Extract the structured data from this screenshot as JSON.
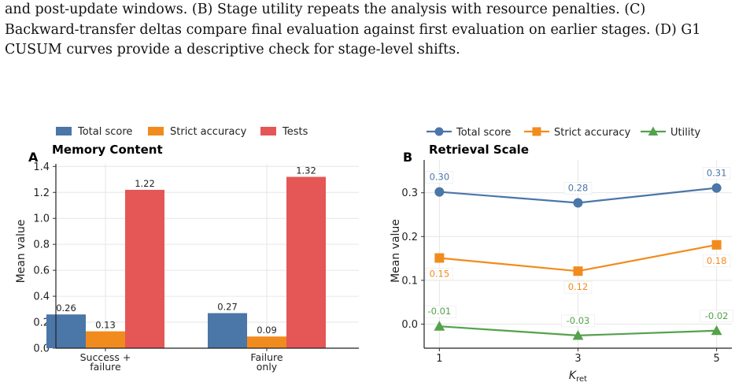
{
  "caption_lines": [
    "and post-update windows. (B) Stage utility repeats the analysis with resource penalties. (C)",
    "Backward-transfer deltas compare final evaluation against first evaluation on earlier stages. (D) G1",
    "CUSUM curves provide a descriptive check for stage-level shifts."
  ],
  "colors": {
    "total": "#4a76a8",
    "strict": "#f28b1e",
    "tests": "#e45756",
    "utility": "#54a24b"
  },
  "chart_data": [
    {
      "type": "bar",
      "panel_letter": "A",
      "title": "Memory Content",
      "ylabel": "Mean value",
      "xlabel": "",
      "categories": [
        "Success +\nfailure",
        "Failure\nonly"
      ],
      "series": [
        {
          "name": "Total score",
          "values": [
            0.26,
            0.27
          ],
          "labels": [
            "0.26",
            "0.27"
          ]
        },
        {
          "name": "Strict accuracy",
          "values": [
            0.13,
            0.09
          ],
          "labels": [
            "0.13",
            "0.09"
          ]
        },
        {
          "name": "Tests",
          "values": [
            1.22,
            1.32
          ],
          "labels": [
            "1.22",
            "1.32"
          ]
        }
      ],
      "ylim": [
        0,
        1.42
      ],
      "yticks": [
        "0.0",
        "0.2",
        "0.4",
        "0.6",
        "0.8",
        "1.0",
        "1.2",
        "1.4"
      ],
      "grid": true,
      "legend": "top"
    },
    {
      "type": "line",
      "panel_letter": "B",
      "title": "Retrieval Scale",
      "ylabel": "Mean value",
      "xlabel": "K_ret",
      "xlabel_main": "K",
      "xlabel_sub": "ret",
      "x": [
        1,
        3,
        5
      ],
      "xticks": [
        "1",
        "3",
        "5"
      ],
      "series": [
        {
          "name": "Total score",
          "marker": "circle",
          "values": [
            0.302,
            0.277,
            0.311
          ],
          "labels": [
            "0.30",
            "0.28",
            "0.31"
          ],
          "label_pos": "above"
        },
        {
          "name": "Strict accuracy",
          "marker": "square",
          "values": [
            0.151,
            0.121,
            0.181
          ],
          "labels": [
            "0.15",
            "0.12",
            "0.18"
          ],
          "label_pos": "below"
        },
        {
          "name": "Utility",
          "marker": "triangle",
          "values": [
            -0.005,
            -0.026,
            -0.015
          ],
          "labels": [
            "-0.01",
            "-0.03",
            "-0.02"
          ],
          "label_pos": "above"
        }
      ],
      "ylim": [
        -0.055,
        0.375
      ],
      "yticks": [
        "0.0",
        "0.1",
        "0.2",
        "0.3"
      ],
      "grid": true,
      "legend": "top"
    }
  ]
}
